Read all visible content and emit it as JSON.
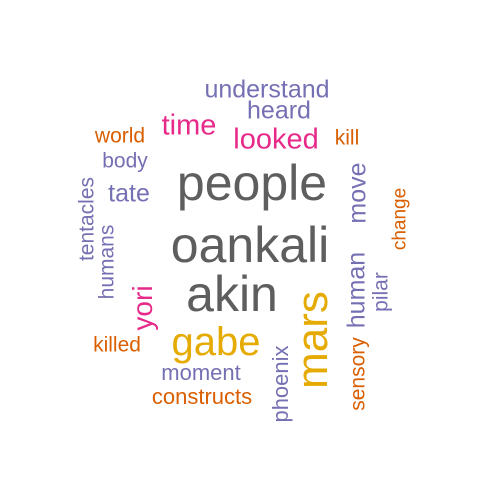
{
  "colors": {
    "gray": "#5e5e5e",
    "purple": "#7570b3",
    "magenta": "#e7298a",
    "orange": "#d95f02",
    "gold": "#e6ab02"
  },
  "words": [
    {
      "id": "people",
      "text": "people",
      "color": "#5e5e5e"
    },
    {
      "id": "oankali",
      "text": "oankali",
      "color": "#5e5e5e"
    },
    {
      "id": "akin",
      "text": "akin",
      "color": "#5e5e5e"
    },
    {
      "id": "mars",
      "text": "mars",
      "color": "#e6ab02"
    },
    {
      "id": "gabe",
      "text": "gabe",
      "color": "#e6ab02"
    },
    {
      "id": "looked",
      "text": "looked",
      "color": "#e7298a"
    },
    {
      "id": "time",
      "text": "time",
      "color": "#e7298a"
    },
    {
      "id": "yori",
      "text": "yori",
      "color": "#e7298a"
    },
    {
      "id": "understand",
      "text": "understand",
      "color": "#7570b3"
    },
    {
      "id": "heard",
      "text": "heard",
      "color": "#7570b3"
    },
    {
      "id": "world",
      "text": "world",
      "color": "#d95f02"
    },
    {
      "id": "kill",
      "text": "kill",
      "color": "#d95f02"
    },
    {
      "id": "body",
      "text": "body",
      "color": "#7570b3"
    },
    {
      "id": "tate",
      "text": "tate",
      "color": "#7570b3"
    },
    {
      "id": "tentacles",
      "text": "tentacles",
      "color": "#7570b3"
    },
    {
      "id": "humans",
      "text": "humans",
      "color": "#7570b3"
    },
    {
      "id": "human",
      "text": "human",
      "color": "#7570b3"
    },
    {
      "id": "move",
      "text": "move",
      "color": "#7570b3"
    },
    {
      "id": "pilar",
      "text": "pilar",
      "color": "#7570b3"
    },
    {
      "id": "change",
      "text": "change",
      "color": "#d95f02"
    },
    {
      "id": "killed",
      "text": "killed",
      "color": "#d95f02"
    },
    {
      "id": "moment",
      "text": "moment",
      "color": "#7570b3"
    },
    {
      "id": "constructs",
      "text": "constructs",
      "color": "#d95f02"
    },
    {
      "id": "phoenix",
      "text": "phoenix",
      "color": "#7570b3"
    },
    {
      "id": "sensory",
      "text": "sensory",
      "color": "#d95f02"
    }
  ]
}
